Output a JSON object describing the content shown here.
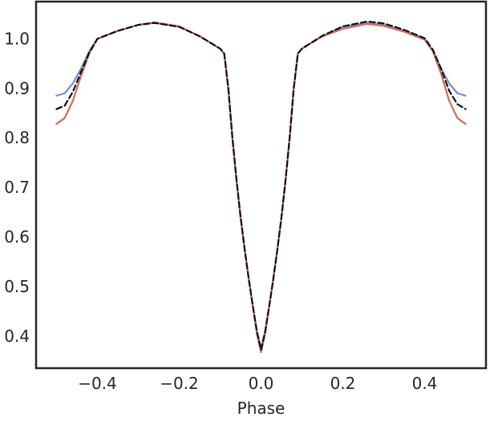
{
  "chart_data": {
    "type": "line",
    "title": "",
    "xlabel": "Phase",
    "ylabel": "",
    "xlim": [
      -0.55,
      0.55
    ],
    "ylim": [
      0.335,
      1.075
    ],
    "grid": false,
    "legend": "none",
    "xticks": [
      {
        "value": -0.4,
        "label": "−0.4"
      },
      {
        "value": -0.2,
        "label": "−0.2"
      },
      {
        "value": 0.0,
        "label": "0.0"
      },
      {
        "value": 0.2,
        "label": "0.2"
      },
      {
        "value": 0.4,
        "label": "0.4"
      }
    ],
    "yticks": [
      {
        "value": 0.4,
        "label": "0.4"
      },
      {
        "value": 0.5,
        "label": "0.5"
      },
      {
        "value": 0.6,
        "label": "0.6"
      },
      {
        "value": 0.7,
        "label": "0.7"
      },
      {
        "value": 0.8,
        "label": "0.8"
      },
      {
        "value": 0.9,
        "label": "0.9"
      },
      {
        "value": 1.0,
        "label": "1.0"
      }
    ],
    "series": [
      {
        "color": "#6f8fd8",
        "style": "solid",
        "x": [
          -0.5,
          -0.48,
          -0.46,
          -0.44,
          -0.42,
          -0.4,
          -0.35,
          -0.3,
          -0.26,
          -0.2,
          -0.15,
          -0.1,
          -0.09,
          -0.08,
          -0.07,
          -0.06,
          -0.05,
          -0.04,
          -0.03,
          -0.02,
          -0.01,
          0.0,
          0.01,
          0.02,
          0.03,
          0.04,
          0.05,
          0.06,
          0.07,
          0.08,
          0.09,
          0.1,
          0.15,
          0.2,
          0.26,
          0.3,
          0.35,
          0.4,
          0.42,
          0.44,
          0.46,
          0.48,
          0.5
        ],
        "y": [
          0.885,
          0.89,
          0.91,
          0.94,
          0.975,
          1.0,
          1.016,
          1.028,
          1.032,
          1.024,
          1.005,
          0.98,
          0.97,
          0.9,
          0.8,
          0.715,
          0.64,
          0.575,
          0.515,
          0.46,
          0.41,
          0.375,
          0.41,
          0.46,
          0.515,
          0.575,
          0.64,
          0.715,
          0.8,
          0.9,
          0.97,
          0.98,
          1.005,
          1.024,
          1.032,
          1.028,
          1.016,
          1.0,
          0.975,
          0.94,
          0.91,
          0.89,
          0.885
        ]
      },
      {
        "color": "#d16b5a",
        "style": "solid",
        "x": [
          -0.5,
          -0.48,
          -0.46,
          -0.44,
          -0.42,
          -0.4,
          -0.35,
          -0.3,
          -0.26,
          -0.2,
          -0.15,
          -0.1,
          -0.09,
          -0.08,
          -0.07,
          -0.06,
          -0.05,
          -0.04,
          -0.03,
          -0.02,
          -0.01,
          0.0,
          0.01,
          0.02,
          0.03,
          0.04,
          0.05,
          0.06,
          0.07,
          0.08,
          0.09,
          0.1,
          0.15,
          0.2,
          0.26,
          0.3,
          0.35,
          0.4,
          0.42,
          0.44,
          0.46,
          0.48,
          0.5
        ],
        "y": [
          0.828,
          0.84,
          0.875,
          0.925,
          0.97,
          1.0,
          1.016,
          1.028,
          1.033,
          1.025,
          1.005,
          0.98,
          0.97,
          0.9,
          0.8,
          0.715,
          0.64,
          0.575,
          0.515,
          0.46,
          0.405,
          0.367,
          0.405,
          0.46,
          0.515,
          0.575,
          0.64,
          0.715,
          0.8,
          0.9,
          0.97,
          0.98,
          1.005,
          1.02,
          1.03,
          1.026,
          1.014,
          0.998,
          0.975,
          0.93,
          0.875,
          0.84,
          0.828
        ]
      },
      {
        "color": "#111111",
        "style": "dashed",
        "x": [
          -0.5,
          -0.48,
          -0.46,
          -0.44,
          -0.42,
          -0.4,
          -0.35,
          -0.3,
          -0.26,
          -0.2,
          -0.15,
          -0.1,
          -0.09,
          -0.08,
          -0.07,
          -0.06,
          -0.05,
          -0.04,
          -0.03,
          -0.02,
          -0.01,
          0.0,
          0.01,
          0.02,
          0.03,
          0.04,
          0.05,
          0.06,
          0.07,
          0.08,
          0.09,
          0.1,
          0.15,
          0.2,
          0.26,
          0.3,
          0.35,
          0.4,
          0.42,
          0.44,
          0.46,
          0.48,
          0.5
        ],
        "y": [
          0.858,
          0.865,
          0.893,
          0.933,
          0.972,
          1.0,
          1.016,
          1.028,
          1.032,
          1.024,
          1.005,
          0.98,
          0.97,
          0.9,
          0.8,
          0.715,
          0.64,
          0.575,
          0.515,
          0.46,
          0.408,
          0.372,
          0.408,
          0.46,
          0.515,
          0.575,
          0.64,
          0.715,
          0.8,
          0.9,
          0.97,
          0.98,
          1.006,
          1.025,
          1.035,
          1.031,
          1.018,
          1.001,
          0.978,
          0.94,
          0.895,
          0.868,
          0.858
        ]
      }
    ]
  }
}
